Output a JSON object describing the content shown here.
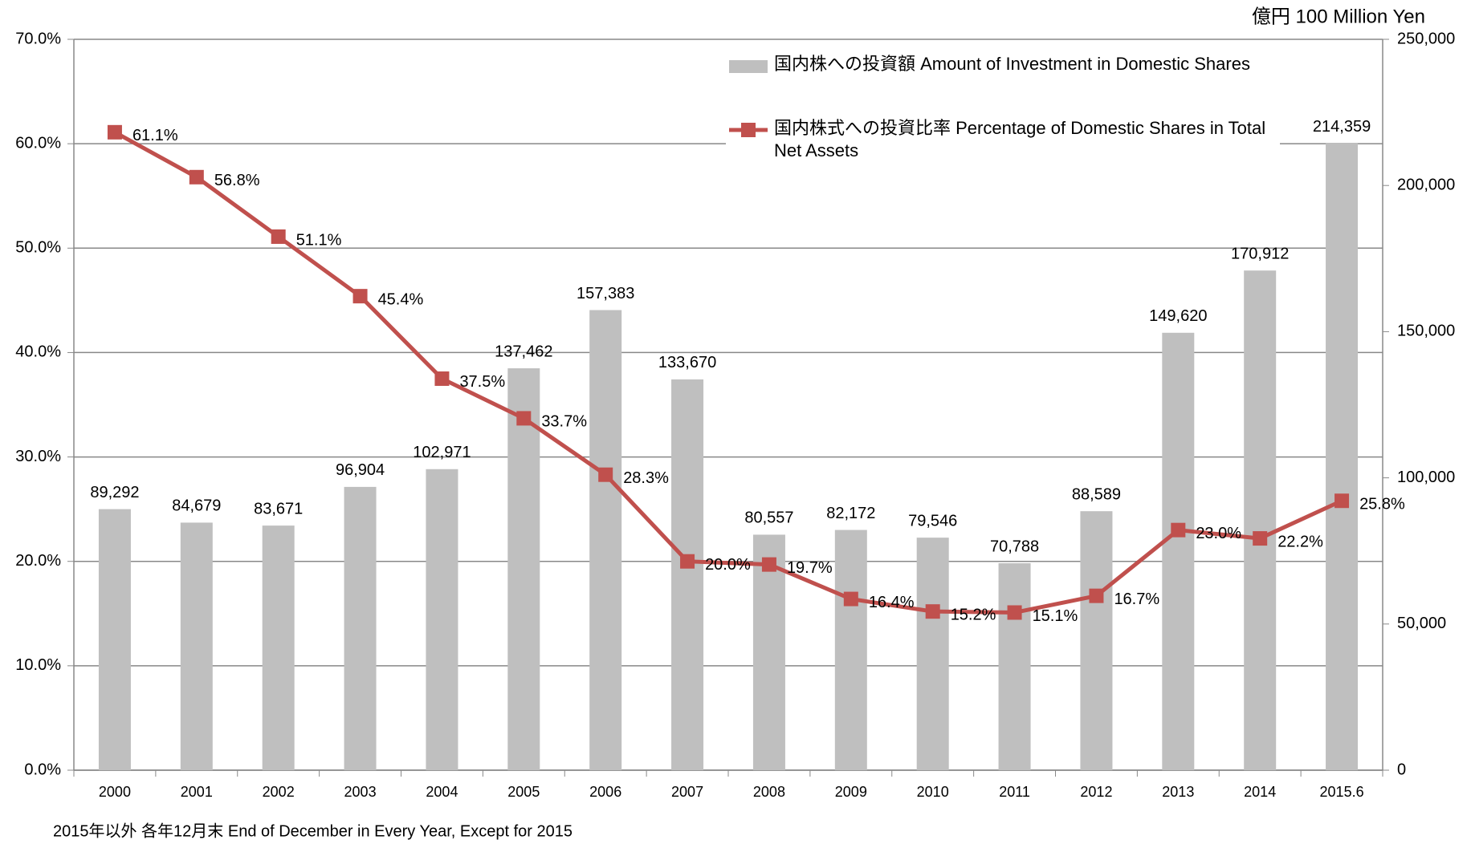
{
  "chart_data": {
    "type": "bar_line",
    "y2_label": "億円 100 Million Yen",
    "footnote": "2015年以外 各年12月末 End of December in Every Year, Except for 2015",
    "categories": [
      "2000",
      "2001",
      "2002",
      "2003",
      "2004",
      "2005",
      "2006",
      "2007",
      "2008",
      "2009",
      "2010",
      "2011",
      "2012",
      "2013",
      "2014",
      "2015.6"
    ],
    "series": [
      {
        "name": "国内株への投資額 Amount of Investment in Domestic Shares",
        "type": "bar",
        "axis": "y2",
        "color": "#bfbfbf",
        "values": [
          89292,
          84679,
          83671,
          96904,
          102971,
          137462,
          157383,
          133670,
          80557,
          82172,
          79546,
          70788,
          88589,
          149620,
          170912,
          214359
        ],
        "value_labels": [
          "89,292",
          "84,679",
          "83,671",
          "96,904",
          "102,971",
          "137,462",
          "157,383",
          "133,670",
          "80,557",
          "82,172",
          "79,546",
          "70,788",
          "88,589",
          "149,620",
          "170,912",
          "214,359"
        ]
      },
      {
        "name": "国内株式への投資比率 Percentage of Domestic Shares in Total Net Assets",
        "type": "line",
        "axis": "y",
        "color": "#c0504d",
        "values": [
          61.1,
          56.8,
          51.1,
          45.4,
          37.5,
          33.7,
          28.3,
          20.0,
          19.7,
          16.4,
          15.2,
          15.1,
          16.7,
          23.0,
          22.2,
          25.8
        ],
        "value_labels": [
          "61.1%",
          "56.8%",
          "51.1%",
          "45.4%",
          "37.5%",
          "33.7%",
          "28.3%",
          "20.0%",
          "19.7%",
          "16.4%",
          "15.2%",
          "15.1%",
          "16.7%",
          "23.0%",
          "22.2%",
          "25.8%"
        ]
      }
    ],
    "ylim": [
      0,
      70
    ],
    "yticks": [
      {
        "value": 0,
        "label": "0.0%"
      },
      {
        "value": 10,
        "label": "10.0%"
      },
      {
        "value": 20,
        "label": "20.0%"
      },
      {
        "value": 30,
        "label": "30.0%"
      },
      {
        "value": 40,
        "label": "40.0%"
      },
      {
        "value": 50,
        "label": "50.0%"
      },
      {
        "value": 60,
        "label": "60.0%"
      },
      {
        "value": 70,
        "label": "70.0%"
      }
    ],
    "y2lim": [
      0,
      250000
    ],
    "y2ticks": [
      0,
      {
        "value": 50000,
        "label": "50,000"
      },
      {
        "value": 100000,
        "label": "100,000"
      },
      {
        "value": 150000,
        "label": "150,000"
      },
      {
        "value": 200000,
        "label": "200,000"
      },
      {
        "value": 250000,
        "label": "250,000"
      }
    ],
    "grid": true
  }
}
